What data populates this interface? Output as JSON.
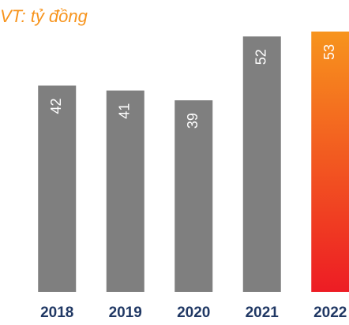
{
  "chart_data": {
    "type": "bar",
    "title": "VT: tỷ đồng",
    "categories": [
      "2018",
      "2019",
      "2020",
      "2021",
      "2022"
    ],
    "values": [
      42,
      41,
      39,
      52,
      53
    ],
    "colors": [
      "#7f7f7f",
      "#7f7f7f",
      "#7f7f7f",
      "#7f7f7f",
      [
        "#f7941d",
        "#ed1c24"
      ]
    ]
  }
}
